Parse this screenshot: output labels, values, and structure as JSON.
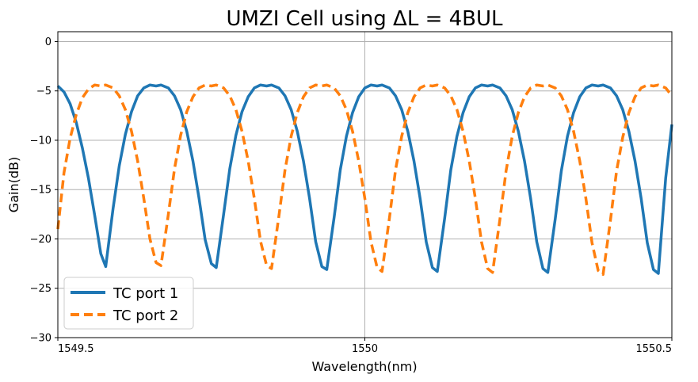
{
  "chart_data": {
    "type": "line",
    "title": "UMZI Cell using ΔL = 4BUL",
    "xlabel": "Wavelength(nm)",
    "ylabel": "Gain(dB)",
    "xlim": [
      1549.5,
      1550.5
    ],
    "ylim": [
      -30,
      1
    ],
    "xticks": [
      1549.5,
      1550,
      1550.5
    ],
    "xtick_labels": [
      "1549.5",
      "1550",
      "1550.5"
    ],
    "yticks": [
      0,
      -5,
      -10,
      -15,
      -20,
      -25,
      -30
    ],
    "ytick_labels": [
      "0",
      "−5",
      "−10",
      "−15",
      "−20",
      "−25",
      "−30"
    ],
    "grid": true,
    "legend_position": "lower-left",
    "series": [
      {
        "name": "TC port 1",
        "color": "#1f77b4",
        "style": "solid",
        "max_db": -4.4,
        "nulls": [
          1549.578,
          1549.758,
          1549.938,
          1550.118,
          1550.298,
          1550.478
        ],
        "null_depths": [
          -22.8,
          -22.9,
          -23.1,
          -23.3,
          -23.4,
          -23.5
        ],
        "x": [
          1549.5,
          1549.51,
          1549.52,
          1549.53,
          1549.54,
          1549.55,
          1549.56,
          1549.57,
          1549.578,
          1549.59,
          1549.6,
          1549.61,
          1549.62,
          1549.63,
          1549.64,
          1549.65,
          1549.66,
          1549.668,
          1549.68,
          1549.69,
          1549.7,
          1549.71,
          1549.72,
          1549.73,
          1549.74,
          1549.75,
          1549.758,
          1549.77,
          1549.78,
          1549.79,
          1549.8,
          1549.81,
          1549.82,
          1549.83,
          1549.84,
          1549.848,
          1549.86,
          1549.87,
          1549.88,
          1549.89,
          1549.9,
          1549.91,
          1549.92,
          1549.93,
          1549.938,
          1549.95,
          1549.96,
          1549.97,
          1549.98,
          1549.99,
          1550.0,
          1550.01,
          1550.02,
          1550.028,
          1550.04,
          1550.05,
          1550.06,
          1550.07,
          1550.08,
          1550.09,
          1550.1,
          1550.11,
          1550.118,
          1550.13,
          1550.14,
          1550.15,
          1550.16,
          1550.17,
          1550.18,
          1550.19,
          1550.2,
          1550.208,
          1550.22,
          1550.23,
          1550.24,
          1550.25,
          1550.26,
          1550.27,
          1550.28,
          1550.29,
          1550.298,
          1550.31,
          1550.32,
          1550.33,
          1550.34,
          1550.35,
          1550.36,
          1550.37,
          1550.38,
          1550.388,
          1550.4,
          1550.41,
          1550.42,
          1550.43,
          1550.44,
          1550.45,
          1550.46,
          1550.47,
          1550.478,
          1550.49,
          1550.5
        ],
        "y": [
          -4.5,
          -5.1,
          -6.3,
          -8.2,
          -10.8,
          -13.9,
          -17.6,
          -21.5,
          -22.8,
          -16.9,
          -12.6,
          -9.4,
          -7.1,
          -5.5,
          -4.7,
          -4.4,
          -4.5,
          -4.4,
          -4.7,
          -5.5,
          -6.9,
          -9.1,
          -12.1,
          -15.9,
          -20.1,
          -22.5,
          -22.9,
          -17.5,
          -12.9,
          -9.5,
          -7.1,
          -5.6,
          -4.7,
          -4.4,
          -4.5,
          -4.4,
          -4.7,
          -5.5,
          -6.9,
          -9.1,
          -12.1,
          -15.9,
          -20.3,
          -22.8,
          -23.1,
          -17.8,
          -13.0,
          -9.6,
          -7.2,
          -5.6,
          -4.7,
          -4.4,
          -4.5,
          -4.4,
          -4.7,
          -5.5,
          -6.9,
          -9.1,
          -12.1,
          -15.9,
          -20.3,
          -22.9,
          -23.3,
          -17.9,
          -13.0,
          -9.6,
          -7.2,
          -5.6,
          -4.7,
          -4.4,
          -4.5,
          -4.4,
          -4.7,
          -5.5,
          -6.9,
          -9.1,
          -12.1,
          -15.9,
          -20.3,
          -23.0,
          -23.4,
          -18.0,
          -13.1,
          -9.6,
          -7.2,
          -5.6,
          -4.7,
          -4.4,
          -4.5,
          -4.4,
          -4.7,
          -5.5,
          -6.9,
          -9.1,
          -12.1,
          -15.9,
          -20.4,
          -23.1,
          -23.5,
          -13.8,
          -8.4
        ]
      },
      {
        "name": "TC port 2",
        "color": "#ff7f0e",
        "style": "dashed",
        "max_db": -4.4,
        "nulls": [
          1549.668,
          1549.848,
          1550.028,
          1550.208,
          1550.388
        ],
        "null_depths": [
          -22.7,
          -23.0,
          -23.3,
          -23.4,
          -23.6
        ],
        "x": [
          1549.5,
          1549.51,
          1549.52,
          1549.53,
          1549.54,
          1549.55,
          1549.56,
          1549.57,
          1549.578,
          1549.59,
          1549.6,
          1549.61,
          1549.62,
          1549.63,
          1549.64,
          1549.65,
          1549.66,
          1549.668,
          1549.68,
          1549.69,
          1549.7,
          1549.71,
          1549.72,
          1549.73,
          1549.74,
          1549.75,
          1549.758,
          1549.77,
          1549.78,
          1549.79,
          1549.8,
          1549.81,
          1549.82,
          1549.83,
          1549.84,
          1549.848,
          1549.86,
          1549.87,
          1549.88,
          1549.89,
          1549.9,
          1549.91,
          1549.92,
          1549.93,
          1549.938,
          1549.95,
          1549.96,
          1549.97,
          1549.98,
          1549.99,
          1550.0,
          1550.01,
          1550.02,
          1550.028,
          1550.04,
          1550.05,
          1550.06,
          1550.07,
          1550.08,
          1550.09,
          1550.1,
          1550.11,
          1550.118,
          1550.13,
          1550.14,
          1550.15,
          1550.16,
          1550.17,
          1550.18,
          1550.19,
          1550.2,
          1550.208,
          1550.22,
          1550.23,
          1550.24,
          1550.25,
          1550.26,
          1550.27,
          1550.28,
          1550.29,
          1550.298,
          1550.31,
          1550.32,
          1550.33,
          1550.34,
          1550.35,
          1550.36,
          1550.37,
          1550.38,
          1550.388,
          1550.4,
          1550.41,
          1550.42,
          1550.43,
          1550.44,
          1550.45,
          1550.46,
          1550.47,
          1550.478,
          1550.49,
          1550.5
        ],
        "y": [
          -19.0,
          -13.3,
          -9.8,
          -7.4,
          -5.7,
          -4.8,
          -4.4,
          -4.5,
          -4.4,
          -4.7,
          -5.5,
          -6.9,
          -9.1,
          -12.1,
          -15.9,
          -20.0,
          -22.4,
          -22.7,
          -17.5,
          -12.9,
          -9.5,
          -7.1,
          -5.6,
          -4.7,
          -4.4,
          -4.5,
          -4.4,
          -4.7,
          -5.5,
          -6.9,
          -9.1,
          -12.1,
          -15.9,
          -20.2,
          -22.7,
          -23.0,
          -17.7,
          -13.0,
          -9.6,
          -7.2,
          -5.6,
          -4.7,
          -4.4,
          -4.5,
          -4.4,
          -4.7,
          -5.5,
          -6.9,
          -9.1,
          -12.1,
          -15.9,
          -20.3,
          -22.9,
          -23.3,
          -17.9,
          -13.0,
          -9.6,
          -7.2,
          -5.6,
          -4.7,
          -4.4,
          -4.5,
          -4.4,
          -4.7,
          -5.5,
          -6.9,
          -9.1,
          -12.1,
          -15.9,
          -20.3,
          -23.0,
          -23.4,
          -18.0,
          -13.1,
          -9.6,
          -7.2,
          -5.6,
          -4.7,
          -4.4,
          -4.5,
          -4.4,
          -4.7,
          -5.5,
          -6.9,
          -9.1,
          -12.1,
          -15.9,
          -20.4,
          -23.2,
          -23.6,
          -18.1,
          -13.1,
          -9.7,
          -7.2,
          -5.6,
          -4.7,
          -4.4,
          -4.5,
          -4.4,
          -4.7,
          -5.5
        ]
      }
    ]
  }
}
